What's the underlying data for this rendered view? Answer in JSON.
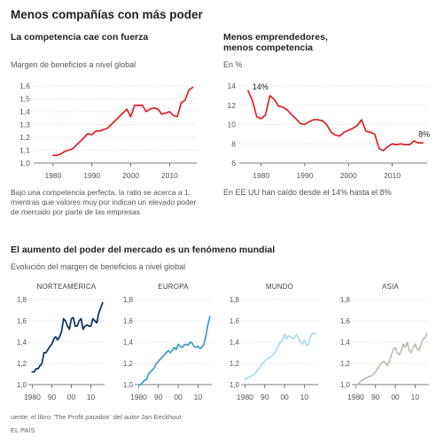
{
  "title": "Menos compañías con más poder",
  "chart1": {
    "title": "La competencia cae con fuerza",
    "subtitle": "Margen de beneficios a nivel global",
    "note": "Bajo una competencia perfecta, la ratio se acerca a 1, mientras que valores muy por indican un elevado poder de mercado por parte de las empresas"
  },
  "chart2": {
    "title": [
      "Menos emprendedores,",
      "menos competencia"
    ],
    "subtitle": "En %",
    "note": "En EE UU han caído desde el 14% hasta el 8%"
  },
  "section2": {
    "title": "El aumento del poder del mercado es un fenómeno mundial",
    "subtitle": "Evolución del margen de beneficios a nivel global"
  },
  "footer": {
    "source": "uente: el libro ¨The Profit paradox¨ del autor Jan Eeckhout",
    "credit": "EL PAÍS"
  },
  "colors": {
    "red": "#e3131b",
    "northamerica": "#0d2f63",
    "europe": "#3a9cc9",
    "world": "#a9dcf0",
    "asia": "#c1bcb4",
    "grid": "#d4d4d4",
    "axis": "#555555"
  },
  "chart_data": [
    {
      "type": "line",
      "title": "La competencia cae con fuerza",
      "ylabel": "Margen de beneficios a nivel global",
      "xlim": [
        1975,
        2017
      ],
      "ylim": [
        1.0,
        1.6
      ],
      "yticks": [
        "1,0",
        "1,1",
        "1,2",
        "1,3",
        "1,4",
        "1,5",
        "1,6"
      ],
      "xticks": [
        1980,
        1990,
        2000,
        2010
      ],
      "grid": "horizontal",
      "series": [
        {
          "color": "#e3131b",
          "x": [
            1980,
            1981,
            1982,
            1983,
            1984,
            1985,
            1986,
            1987,
            1988,
            1989,
            1990,
            1991,
            1992,
            1993,
            1994,
            1995,
            1996,
            1997,
            1998,
            1999,
            2000,
            2001,
            2002,
            2003,
            2004,
            2005,
            2006,
            2007,
            2008,
            2009,
            2010,
            2011,
            2012,
            2013,
            2014,
            2015,
            2016
          ],
          "y": [
            1.06,
            1.06,
            1.07,
            1.09,
            1.1,
            1.11,
            1.14,
            1.17,
            1.2,
            1.23,
            1.22,
            1.25,
            1.25,
            1.26,
            1.27,
            1.3,
            1.33,
            1.36,
            1.39,
            1.42,
            1.36,
            1.45,
            1.45,
            1.45,
            1.4,
            1.42,
            1.43,
            1.42,
            1.38,
            1.39,
            1.4,
            1.37,
            1.36,
            1.47,
            1.49,
            1.57,
            1.59
          ]
        }
      ]
    },
    {
      "type": "line",
      "title": "Menos emprendedores, menos competencia",
      "ylabel": "En %",
      "xlim": [
        1975,
        2018
      ],
      "ylim": [
        6,
        14
      ],
      "yticks": [
        "6",
        "8",
        "10",
        "12",
        "14"
      ],
      "xticks": [
        1980,
        1990,
        2000,
        2010
      ],
      "grid": "horizontal",
      "annotations": [
        {
          "text": "14%",
          "x": 1978,
          "y": 14
        },
        {
          "text": "8%",
          "x": 2016,
          "y": 8
        }
      ],
      "series": [
        {
          "color": "#e3131b",
          "x": [
            1977,
            1978,
            1979,
            1980,
            1981,
            1982,
            1983,
            1984,
            1985,
            1986,
            1987,
            1988,
            1989,
            1990,
            1991,
            1992,
            1993,
            1994,
            1995,
            1996,
            1997,
            1998,
            1999,
            2000,
            2001,
            2002,
            2003,
            2004,
            2005,
            2006,
            2007,
            2008,
            2009,
            2010,
            2011,
            2012,
            2013,
            2014,
            2015,
            2016,
            2017
          ],
          "y": [
            13.5,
            12.5,
            10.8,
            10.6,
            11.0,
            13.0,
            12.6,
            11.9,
            11.8,
            11.5,
            11.0,
            10.6,
            10.1,
            10.0,
            10.3,
            10.5,
            10.5,
            10.4,
            10.0,
            9.2,
            8.9,
            8.8,
            9.2,
            9.4,
            9.6,
            9.9,
            10.5,
            9.3,
            9.2,
            9.0,
            7.5,
            7.3,
            7.7,
            8.0,
            7.9,
            8.0,
            7.9,
            7.9,
            8.3,
            8.1,
            8.1
          ]
        }
      ]
    },
    {
      "type": "line",
      "title": "NORTEAMÉRICA",
      "xlim": [
        1978,
        2017
      ],
      "ylim": [
        1.0,
        1.8
      ],
      "yticks": [
        "1,0",
        "1,2",
        "1,4",
        "1,6",
        "1,8"
      ],
      "xticks": [
        "1980",
        "90",
        "00",
        "10"
      ],
      "series": [
        {
          "color": "#0d2f63",
          "x": [
            1980,
            1981,
            1982,
            1983,
            1984,
            1985,
            1986,
            1987,
            1988,
            1989,
            1990,
            1991,
            1992,
            1993,
            1994,
            1995,
            1996,
            1997,
            1998,
            1999,
            2000,
            2001,
            2002,
            2003,
            2004,
            2005,
            2006,
            2007,
            2008,
            2009,
            2010,
            2011,
            2012,
            2013,
            2014,
            2015,
            2016
          ],
          "y": [
            1.12,
            1.12,
            1.15,
            1.15,
            1.18,
            1.2,
            1.3,
            1.3,
            1.33,
            1.36,
            1.38,
            1.43,
            1.45,
            1.42,
            1.45,
            1.5,
            1.62,
            1.6,
            1.55,
            1.52,
            1.62,
            1.63,
            1.55,
            1.55,
            1.6,
            1.62,
            1.52,
            1.55,
            1.56,
            1.55,
            1.55,
            1.62,
            1.6,
            1.58,
            1.67,
            1.72,
            1.77
          ]
        }
      ]
    },
    {
      "type": "line",
      "title": "EUROPA",
      "xlim": [
        1978,
        2017
      ],
      "ylim": [
        1.0,
        1.8
      ],
      "yticks": [
        "1,0",
        "1,2",
        "1,4",
        "1,6",
        "1,8"
      ],
      "xticks": [
        "1980",
        "90",
        "00",
        "10"
      ],
      "series": [
        {
          "color": "#3a9cc9",
          "x": [
            1980,
            1981,
            1982,
            1983,
            1984,
            1985,
            1986,
            1987,
            1988,
            1989,
            1990,
            1991,
            1992,
            1993,
            1994,
            1995,
            1996,
            1997,
            1998,
            1999,
            2000,
            2001,
            2002,
            2003,
            2004,
            2005,
            2006,
            2007,
            2008,
            2009,
            2010,
            2011,
            2012,
            2013,
            2014,
            2015,
            2016
          ],
          "y": [
            1.0,
            1.0,
            1.02,
            1.04,
            1.05,
            1.1,
            1.12,
            1.14,
            1.16,
            1.2,
            1.22,
            1.24,
            1.26,
            1.28,
            1.3,
            1.32,
            1.3,
            1.32,
            1.35,
            1.33,
            1.38,
            1.36,
            1.35,
            1.37,
            1.38,
            1.37,
            1.4,
            1.39,
            1.36,
            1.35,
            1.36,
            1.34,
            1.35,
            1.38,
            1.46,
            1.56,
            1.64
          ]
        }
      ]
    },
    {
      "type": "line",
      "title": "MUNDO",
      "xlim": [
        1978,
        2017
      ],
      "ylim": [
        1.0,
        1.8
      ],
      "yticks": [
        "1,0",
        "1,2",
        "1,4",
        "1,6",
        "1,8"
      ],
      "xticks": [
        "1980",
        "90",
        "00",
        "10"
      ],
      "series": [
        {
          "color": "#a9dcf0",
          "x": [
            1980,
            1981,
            1982,
            1983,
            1984,
            1985,
            1986,
            1987,
            1988,
            1989,
            1990,
            1991,
            1992,
            1993,
            1994,
            1995,
            1996,
            1997,
            1998,
            1999,
            2000,
            2001,
            2002,
            2003,
            2004,
            2005,
            2006,
            2007,
            2008,
            2009,
            2010,
            2011,
            2012,
            2013,
            2014,
            2015,
            2016
          ],
          "y": [
            1.05,
            1.06,
            1.07,
            1.08,
            1.09,
            1.1,
            1.13,
            1.15,
            1.18,
            1.2,
            1.22,
            1.24,
            1.25,
            1.26,
            1.28,
            1.3,
            1.33,
            1.37,
            1.4,
            1.42,
            1.47,
            1.43,
            1.46,
            1.45,
            1.43,
            1.44,
            1.47,
            1.44,
            1.4,
            1.38,
            1.42,
            1.38,
            1.37,
            1.45,
            1.48,
            1.48,
            1.48
          ]
        }
      ]
    },
    {
      "type": "line",
      "title": "ASIA",
      "xlim": [
        1978,
        2017
      ],
      "ylim": [
        1.0,
        1.8
      ],
      "yticks": [
        "1,0",
        "1,2",
        "1,4",
        "1,6",
        "1,8"
      ],
      "xticks": [
        "1980",
        "90",
        "00",
        "10"
      ],
      "series": [
        {
          "color": "#c1bcb4",
          "x": [
            1980,
            1981,
            1982,
            1983,
            1984,
            1985,
            1986,
            1987,
            1988,
            1989,
            1990,
            1991,
            1992,
            1993,
            1994,
            1995,
            1996,
            1997,
            1998,
            1999,
            2000,
            2001,
            2002,
            2003,
            2004,
            2005,
            2006,
            2007,
            2008,
            2009,
            2010,
            2011,
            2012,
            2013,
            2014,
            2015,
            2016
          ],
          "y": [
            0.99,
            1.0,
            1.02,
            1.04,
            1.05,
            1.06,
            1.07,
            1.08,
            1.08,
            1.1,
            1.12,
            1.15,
            1.18,
            1.2,
            1.22,
            1.2,
            1.18,
            1.22,
            1.28,
            1.33,
            1.35,
            1.3,
            1.28,
            1.32,
            1.38,
            1.35,
            1.4,
            1.32,
            1.3,
            1.35,
            1.38,
            1.34,
            1.32,
            1.38,
            1.43,
            1.44,
            1.48
          ]
        }
      ]
    }
  ]
}
